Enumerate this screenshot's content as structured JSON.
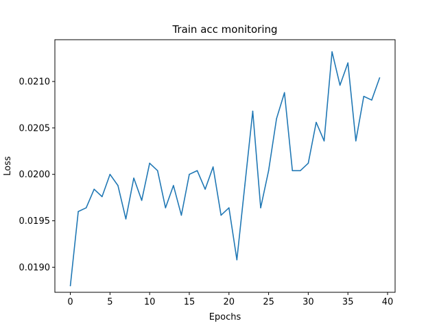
{
  "chart_data": {
    "type": "line",
    "title": "Train acc monitoring",
    "xlabel": "Epochs",
    "ylabel": "Loss",
    "xlim": [
      -1.95,
      40.95
    ],
    "ylim": [
      0.01873,
      0.02145
    ],
    "xticks": [
      0,
      5,
      10,
      15,
      20,
      25,
      30,
      35,
      40
    ],
    "xtick_labels": [
      "0",
      "5",
      "10",
      "15",
      "20",
      "25",
      "30",
      "35",
      "40"
    ],
    "yticks": [
      0.019,
      0.0195,
      0.02,
      0.0205,
      0.021
    ],
    "ytick_labels": [
      "0.0190",
      "0.0195",
      "0.0200",
      "0.0205",
      "0.0210"
    ],
    "grid": false,
    "series": [
      {
        "color": "#1f77b4",
        "x": [
          0,
          1,
          2,
          3,
          4,
          5,
          6,
          7,
          8,
          9,
          10,
          11,
          12,
          13,
          14,
          15,
          16,
          17,
          18,
          19,
          20,
          21,
          22,
          23,
          24,
          25,
          26,
          27,
          28,
          29,
          30,
          31,
          32,
          33,
          34,
          35,
          36,
          37,
          38,
          39
        ],
        "values": [
          0.0188,
          0.0196,
          0.01964,
          0.01984,
          0.01976,
          0.02,
          0.01988,
          0.01952,
          0.01996,
          0.01972,
          0.02012,
          0.02004,
          0.01964,
          0.01988,
          0.01956,
          0.02,
          0.02004,
          0.01984,
          0.02008,
          0.01956,
          0.01964,
          0.01908,
          0.01988,
          0.02068,
          0.01964,
          0.02004,
          0.0206,
          0.02088,
          0.02004,
          0.02004,
          0.02012,
          0.02056,
          0.02036,
          0.02132,
          0.02096,
          0.0212,
          0.02036,
          0.02084,
          0.0208,
          0.02104
        ]
      }
    ]
  }
}
